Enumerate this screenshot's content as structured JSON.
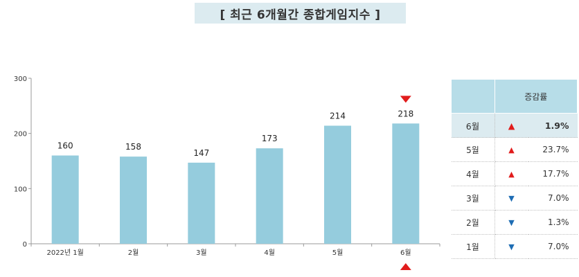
{
  "title": "[ 최근 6개월간 종합게임지수 ]",
  "chart_data": {
    "type": "bar",
    "categories": [
      "2022년 1월",
      "2월",
      "3월",
      "4월",
      "5월",
      "6월"
    ],
    "values": [
      160,
      158,
      147,
      173,
      214,
      218
    ],
    "ylim": [
      0,
      300
    ],
    "yticks": [
      "0",
      "100",
      "200",
      "300"
    ],
    "bar_color": "#95ccdd",
    "highlight_category": "6월",
    "marker_color": "#e11c1c"
  },
  "table": {
    "header": "증감률",
    "rows": [
      {
        "month": "6월",
        "dir": "up",
        "arrow": "▲",
        "pct": "1.9%",
        "highlight": true
      },
      {
        "month": "5월",
        "dir": "up",
        "arrow": "▲",
        "pct": "23.7%"
      },
      {
        "month": "4월",
        "dir": "up",
        "arrow": "▲",
        "pct": "17.7%"
      },
      {
        "month": "3월",
        "dir": "down",
        "arrow": "▼",
        "pct": "7.0%"
      },
      {
        "month": "2월",
        "dir": "down",
        "arrow": "▼",
        "pct": "1.3%"
      },
      {
        "month": "1월",
        "dir": "down",
        "arrow": "▼",
        "pct": "7.0%"
      }
    ],
    "colors": {
      "up": "#e11c1c",
      "down": "#1e6db4",
      "header_bg": "#b7dde8",
      "highlight_bg": "#dcebf0"
    }
  }
}
